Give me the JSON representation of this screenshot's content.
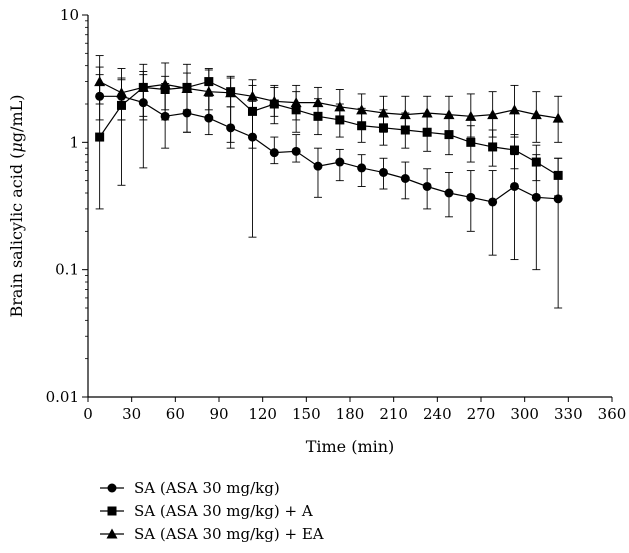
{
  "chart_data": {
    "type": "line",
    "xlabel": "Time (min)",
    "ylabel_prefix": "Brain salicylic acid (",
    "ylabel_unit_mu": "μ",
    "ylabel_suffix": "g/mL)",
    "xlim": [
      0,
      360
    ],
    "ylim": [
      0.01,
      10
    ],
    "y_scale": "log",
    "x_ticks": [
      0,
      30,
      60,
      90,
      120,
      150,
      180,
      210,
      240,
      270,
      300,
      330,
      360
    ],
    "y_ticks": [
      {
        "value": 0.01,
        "label": "0.01"
      },
      {
        "value": 0.1,
        "label": "0.1"
      },
      {
        "value": 1,
        "label": "1"
      },
      {
        "value": 10,
        "label": "10"
      }
    ],
    "grid": false,
    "legend_position": "bottom-left",
    "x": [
      8,
      23,
      38,
      53,
      68,
      83,
      98,
      113,
      128,
      143,
      158,
      173,
      188,
      203,
      218,
      233,
      248,
      263,
      278,
      293,
      308,
      323
    ],
    "series": [
      {
        "name": "SA (ASA 30 mg/kg)",
        "marker": "circle",
        "values": [
          2.3,
          2.3,
          2.05,
          1.6,
          1.7,
          1.55,
          1.3,
          1.1,
          0.83,
          0.85,
          0.65,
          0.7,
          0.63,
          0.58,
          0.52,
          0.45,
          0.4,
          0.37,
          0.34,
          0.45,
          0.37,
          0.36
        ],
        "err_upper": [
          3.4,
          3.2,
          3.4,
          2.9,
          2.6,
          2.3,
          1.9,
          2.1,
          1.1,
          1.15,
          0.9,
          0.88,
          0.8,
          0.75,
          0.7,
          0.62,
          0.58,
          0.6,
          0.6,
          0.8,
          0.8,
          0.75
        ],
        "err_lower": [
          1.5,
          1.5,
          1.6,
          0.9,
          1.2,
          1.15,
          0.9,
          0.18,
          0.68,
          0.7,
          0.37,
          0.5,
          0.45,
          0.43,
          0.36,
          0.3,
          0.26,
          0.2,
          0.13,
          0.12,
          0.1,
          0.05
        ]
      },
      {
        "name": "SA (ASA 30 mg/kg) + A",
        "marker": "square",
        "values": [
          1.1,
          1.95,
          2.7,
          2.6,
          2.7,
          3.0,
          2.5,
          1.75,
          2.0,
          1.8,
          1.6,
          1.5,
          1.35,
          1.3,
          1.25,
          1.2,
          1.15,
          1.0,
          0.92,
          0.87,
          0.7,
          0.55
        ],
        "err_upper": [
          3.9,
          3.1,
          3.6,
          3.3,
          3.5,
          3.7,
          3.3,
          2.8,
          2.8,
          2.5,
          2.2,
          2.0,
          1.85,
          1.8,
          1.7,
          1.65,
          1.6,
          1.35,
          1.25,
          1.15,
          0.95,
          0.75
        ],
        "err_lower": [
          0.3,
          0.46,
          0.63,
          1.5,
          1.2,
          1.6,
          1.0,
          0.9,
          1.4,
          1.2,
          1.15,
          1.1,
          1.0,
          0.95,
          0.9,
          0.85,
          0.8,
          0.7,
          0.65,
          0.62,
          0.5,
          0.38
        ]
      },
      {
        "name": "SA (ASA 30 mg/kg) + EA",
        "marker": "triangle",
        "values": [
          3.0,
          2.45,
          2.7,
          2.85,
          2.65,
          2.5,
          2.45,
          2.3,
          2.1,
          2.05,
          2.05,
          1.9,
          1.8,
          1.7,
          1.65,
          1.7,
          1.65,
          1.6,
          1.65,
          1.8,
          1.65,
          1.55
        ],
        "err_upper": [
          4.8,
          3.8,
          4.1,
          4.2,
          4.1,
          3.8,
          3.2,
          3.1,
          2.7,
          2.8,
          2.7,
          2.6,
          2.4,
          2.3,
          2.3,
          2.3,
          2.3,
          2.4,
          2.5,
          2.8,
          2.5,
          2.3
        ],
        "err_lower": [
          2.0,
          1.5,
          1.5,
          1.8,
          1.8,
          1.8,
          1.9,
          1.7,
          1.6,
          1.5,
          1.5,
          1.4,
          1.3,
          1.2,
          1.2,
          1.2,
          1.1,
          1.1,
          1.1,
          1.1,
          1.0,
          1.0
        ]
      }
    ]
  }
}
